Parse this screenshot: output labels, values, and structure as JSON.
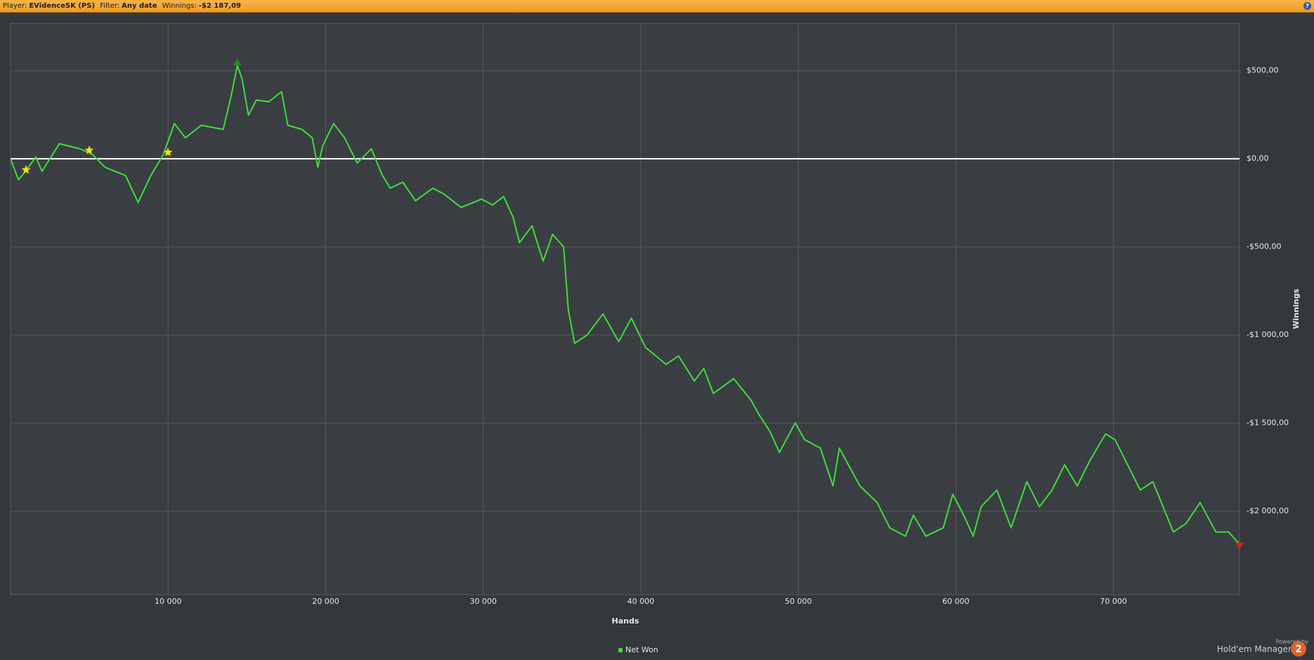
{
  "header": {
    "player_label": "Player:",
    "player": "EVidenceSK (PS)",
    "filter_label": "Filter:",
    "filter": "Any date",
    "winnings_label": "Winnings:",
    "winnings": "-$2 187,09"
  },
  "branding": {
    "powered_by": "Powered by",
    "product": "Hold'em Manager",
    "logo_text": "2"
  },
  "chart_data": {
    "type": "line",
    "xlabel": "Hands",
    "ylabel": "Winnings",
    "xlim": [
      0,
      78000
    ],
    "ylim": [
      -2475,
      770
    ],
    "xticks": [
      {
        "value": 10000,
        "label": "10 000"
      },
      {
        "value": 20000,
        "label": "20 000"
      },
      {
        "value": 30000,
        "label": "30 000"
      },
      {
        "value": 40000,
        "label": "40 000"
      },
      {
        "value": 50000,
        "label": "50 000"
      },
      {
        "value": 60000,
        "label": "60 000"
      },
      {
        "value": 70000,
        "label": "70 000"
      }
    ],
    "yticks": [
      {
        "value": 500,
        "label": "$500,00"
      },
      {
        "value": 0,
        "label": "$0,00"
      },
      {
        "value": -500,
        "label": "-$500,00"
      },
      {
        "value": -1000,
        "label": "-$1 000,00"
      },
      {
        "value": -1500,
        "label": "-$1 500,00"
      },
      {
        "value": -2000,
        "label": "-$2 000,00"
      }
    ],
    "grid": true,
    "legend": "bottom",
    "x": [
      0,
      500,
      960,
      1600,
      2000,
      3100,
      4400,
      5200,
      6000,
      7300,
      8100,
      8900,
      9700,
      10400,
      11100,
      12100,
      13500,
      14000,
      14400,
      14700,
      15100,
      15600,
      16400,
      17200,
      17600,
      18500,
      19150,
      19500,
      19800,
      20500,
      21200,
      22000,
      22900,
      23600,
      24100,
      24900,
      25700,
      26800,
      27500,
      28600,
      29900,
      30600,
      31300,
      31900,
      32300,
      33100,
      33800,
      34400,
      35100,
      35400,
      35800,
      36600,
      37600,
      38600,
      39400,
      40300,
      41600,
      42400,
      43400,
      44000,
      44600,
      45900,
      47000,
      47500,
      48200,
      48800,
      49800,
      50400,
      51400,
      52200,
      52600,
      53900,
      55000,
      55800,
      56800,
      57300,
      58100,
      59200,
      59800,
      60500,
      61100,
      61600,
      62600,
      63500,
      64500,
      65300,
      66100,
      66900,
      67700,
      68500,
      69500,
      70100,
      70900,
      71700,
      72500,
      73800,
      74600,
      75500,
      76500,
      77300,
      78000
    ],
    "series": [
      {
        "name": "Net Won",
        "color": "#3ddc3a",
        "values": [
          0,
          -119,
          -71,
          10,
          -71,
          86,
          57,
          24,
          -48,
          -95,
          -248,
          -95,
          24,
          200,
          119,
          190,
          167,
          357,
          530,
          452,
          248,
          333,
          324,
          381,
          190,
          167,
          119,
          -48,
          71,
          200,
          119,
          -24,
          57,
          -95,
          -167,
          -133,
          -238,
          -167,
          -200,
          -276,
          -229,
          -262,
          -214,
          -333,
          -476,
          -381,
          -581,
          -429,
          -500,
          -857,
          -1048,
          -1000,
          -881,
          -1038,
          -905,
          -1071,
          -1167,
          -1119,
          -1262,
          -1190,
          -1333,
          -1248,
          -1371,
          -1452,
          -1548,
          -1667,
          -1500,
          -1595,
          -1643,
          -1857,
          -1643,
          -1857,
          -1952,
          -2095,
          -2143,
          -2024,
          -2143,
          -2095,
          -1905,
          -2024,
          -2143,
          -1976,
          -1881,
          -2095,
          -1833,
          -1976,
          -1881,
          -1738,
          -1857,
          -1714,
          -1562,
          -1595,
          -1738,
          -1881,
          -1833,
          -2119,
          -2071,
          -1952,
          -2119,
          -2119,
          -2187.09
        ]
      }
    ]
  }
}
